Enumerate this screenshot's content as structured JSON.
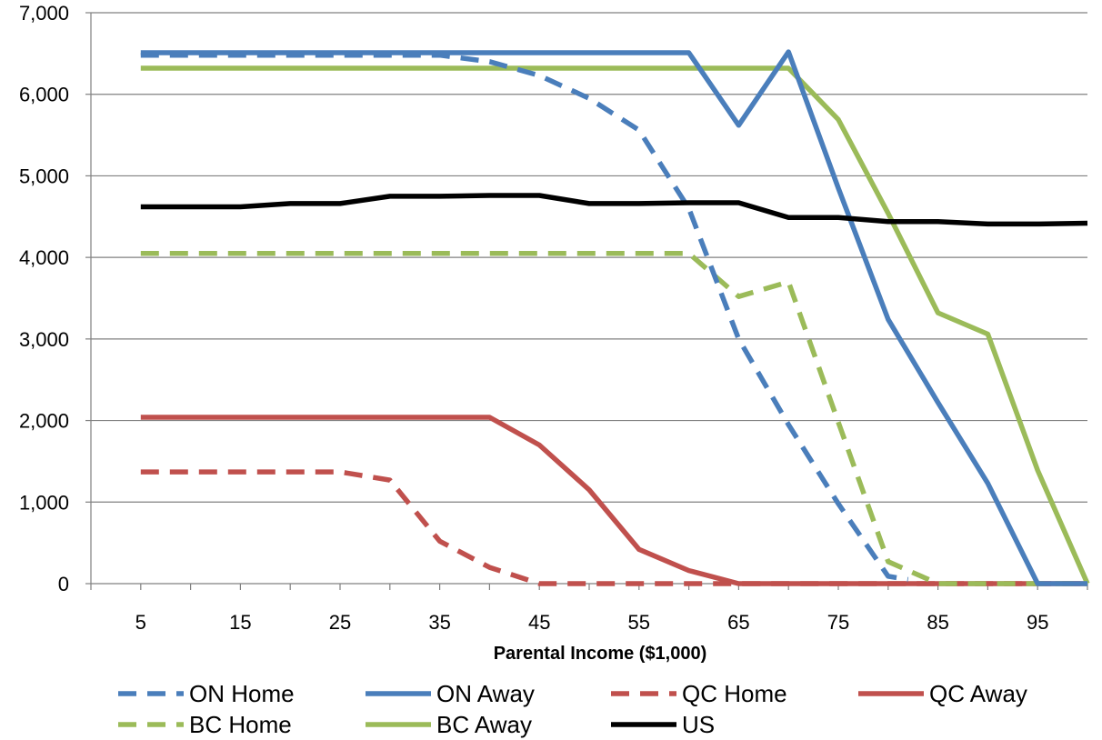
{
  "chart_data": {
    "type": "line",
    "title": "",
    "xlabel": "Parental Income ($1,000)",
    "ylabel": "",
    "xlim": [
      0,
      100
    ],
    "ylim": [
      0,
      7000
    ],
    "x_ticks": [
      5,
      15,
      25,
      35,
      45,
      55,
      65,
      75,
      85,
      95
    ],
    "x_tick_labels": [
      "5",
      "15",
      "25",
      "35",
      "45",
      "55",
      "65",
      "75",
      "85",
      "95"
    ],
    "y_ticks": [
      0,
      1000,
      2000,
      3000,
      4000,
      5000,
      6000,
      7000
    ],
    "y_tick_labels": [
      "0",
      "1,000",
      "2,000",
      "3,000",
      "4,000",
      "5,000",
      "6,000",
      "7,000"
    ],
    "grid": "horizontal",
    "legend_position": "bottom",
    "series": [
      {
        "name": "ON Home",
        "color": "#4A7EBB",
        "dash": "dashed",
        "x": [
          5,
          10,
          15,
          20,
          25,
          30,
          35,
          40,
          45,
          50,
          55,
          60,
          65,
          70,
          75,
          80,
          82
        ],
        "y": [
          6480,
          6480,
          6480,
          6480,
          6480,
          6480,
          6480,
          6400,
          6230,
          5950,
          5560,
          4600,
          3000,
          1950,
          980,
          90,
          50
        ]
      },
      {
        "name": "ON Away",
        "color": "#4A7EBB",
        "dash": "solid",
        "x": [
          5,
          10,
          15,
          20,
          25,
          30,
          35,
          40,
          45,
          50,
          55,
          60,
          65,
          70,
          75,
          80,
          85,
          90,
          95,
          100
        ],
        "y": [
          6510,
          6510,
          6510,
          6510,
          6510,
          6510,
          6510,
          6510,
          6510,
          6510,
          6510,
          6510,
          5620,
          6520,
          4850,
          3240,
          2220,
          1230,
          0,
          0
        ]
      },
      {
        "name": "QC Home",
        "color": "#C0504D",
        "dash": "dashed",
        "x": [
          5,
          10,
          15,
          20,
          25,
          30,
          35,
          40,
          45,
          50,
          55,
          60,
          65,
          70,
          75,
          80,
          85,
          90,
          95,
          100
        ],
        "y": [
          1370,
          1370,
          1370,
          1370,
          1370,
          1270,
          520,
          200,
          0,
          0,
          0,
          0,
          0,
          0,
          0,
          0,
          0,
          0,
          0,
          0
        ]
      },
      {
        "name": "QC Away",
        "color": "#C0504D",
        "dash": "solid",
        "x": [
          5,
          10,
          15,
          20,
          25,
          30,
          35,
          40,
          45,
          50,
          55,
          60,
          65,
          70,
          75,
          80,
          85,
          90,
          95,
          100
        ],
        "y": [
          2040,
          2040,
          2040,
          2040,
          2040,
          2040,
          2040,
          2040,
          1700,
          1150,
          420,
          160,
          0,
          0,
          0,
          0,
          0,
          0,
          0,
          0
        ]
      },
      {
        "name": "BC Home",
        "color": "#9BBB59",
        "dash": "dashed",
        "x": [
          5,
          10,
          15,
          20,
          25,
          30,
          35,
          40,
          45,
          50,
          55,
          60,
          65,
          70,
          75,
          80,
          85,
          90,
          95,
          100
        ],
        "y": [
          4050,
          4050,
          4050,
          4050,
          4050,
          4050,
          4050,
          4050,
          4050,
          4050,
          4050,
          4050,
          3520,
          3700,
          1980,
          270,
          0,
          0,
          0,
          0
        ]
      },
      {
        "name": "BC Away",
        "color": "#9BBB59",
        "dash": "solid",
        "x": [
          5,
          10,
          15,
          20,
          25,
          30,
          35,
          40,
          45,
          50,
          55,
          60,
          65,
          70,
          75,
          80,
          85,
          90,
          95,
          100
        ],
        "y": [
          6320,
          6320,
          6320,
          6320,
          6320,
          6320,
          6320,
          6320,
          6320,
          6320,
          6320,
          6320,
          6320,
          6320,
          5690,
          4540,
          3320,
          3060,
          1390,
          0
        ]
      },
      {
        "name": "US",
        "color": "#000000",
        "dash": "solid",
        "x": [
          5,
          10,
          15,
          20,
          25,
          30,
          35,
          40,
          45,
          50,
          55,
          60,
          65,
          70,
          75,
          80,
          85,
          90,
          95,
          100
        ],
        "y": [
          4620,
          4620,
          4620,
          4660,
          4660,
          4750,
          4750,
          4760,
          4760,
          4660,
          4660,
          4670,
          4670,
          4490,
          4490,
          4440,
          4440,
          4410,
          4410,
          4420
        ]
      }
    ]
  }
}
